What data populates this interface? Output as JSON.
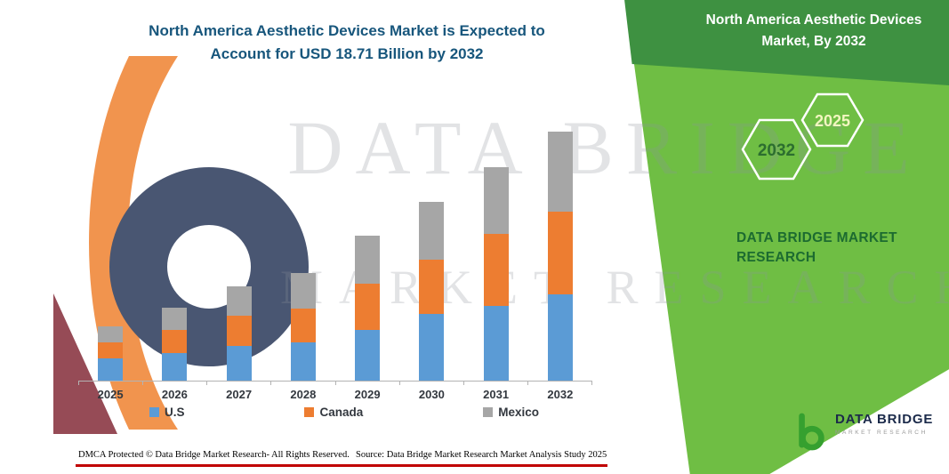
{
  "header": {
    "title_line1": "North America Aesthetic Devices Market is Expected to",
    "title_line2": "Account for USD 18.71 Billion by 2032",
    "title_color": "#17567c"
  },
  "right_panel": {
    "banner_title": "North America Aesthetic Devices Market, By 2032",
    "band_color": "#6fbe44",
    "band_dark_color": "#3e9141",
    "hexagons": [
      {
        "label": "2032",
        "label_color": "#2c6e2f"
      },
      {
        "label": "2025",
        "label_color": "#f2f6c0"
      }
    ],
    "brand_text": "DATA BRIDGE MARKET RESEARCH",
    "brand_color": "#1c6b30"
  },
  "watermark": {
    "line1": "DATA BRIDGE",
    "line2": "MARKET RESEARCH"
  },
  "chart_data": {
    "type": "bar",
    "stacked": true,
    "title": "North America Aesthetic Devices Market is Expected to Account for USD 18.71 Billion by 2032",
    "unit": "USD Billion",
    "categories": [
      "2025",
      "2026",
      "2027",
      "2028",
      "2029",
      "2030",
      "2031",
      "2032"
    ],
    "series": [
      {
        "name": "U.S",
        "color": "#5b9bd5",
        "values": [
          1.7,
          2.1,
          2.6,
          2.9,
          3.8,
          5.0,
          5.6,
          6.5
        ]
      },
      {
        "name": "Canada",
        "color": "#ed7d31",
        "values": [
          1.2,
          1.7,
          2.3,
          2.5,
          3.5,
          4.1,
          5.4,
          6.2
        ]
      },
      {
        "name": "Mexico",
        "color": "#a6a6a6",
        "values": [
          1.2,
          1.7,
          2.2,
          2.7,
          3.6,
          4.3,
          5.0,
          6.0
        ]
      }
    ],
    "totals": [
      4.1,
      5.5,
      7.1,
      8.1,
      10.9,
      13.4,
      16.0,
      18.71
    ],
    "ylim": [
      0,
      20
    ],
    "grid": false,
    "legend_position": "bottom",
    "axis_line_color": "#b3b3b3"
  },
  "footer": {
    "dmca": "DMCA Protected © Data Bridge Market Research-  All Rights Reserved.",
    "source": "Source: Data Bridge Market Research  Market Analysis Study 2025",
    "rule_color": "#c00000"
  },
  "logo": {
    "name": "DATA BRIDGE",
    "subtitle": "MARKET RESEARCH"
  }
}
